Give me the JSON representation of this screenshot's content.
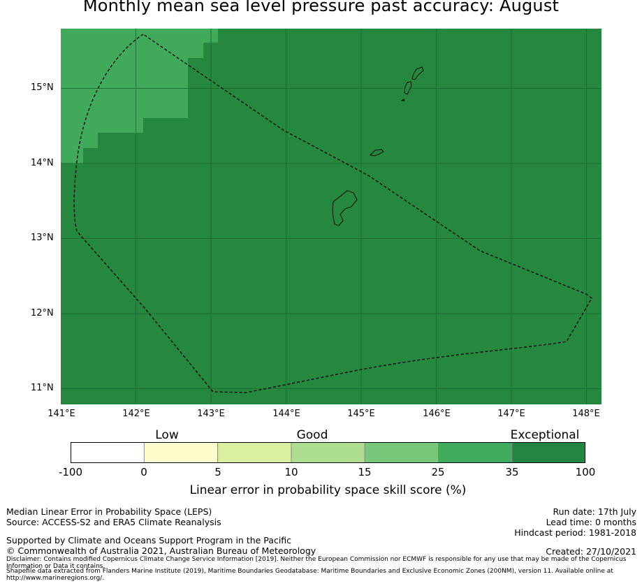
{
  "title": "Monthly mean sea level pressure past accuracy: August",
  "map": {
    "lon_range": [
      141,
      148.2
    ],
    "lat_range": [
      10.8,
      15.8
    ],
    "lat_ticks": [
      "15°N",
      "14°N",
      "13°N",
      "12°N",
      "11°N"
    ],
    "lon_ticks": [
      "141°E",
      "142°E",
      "143°E",
      "144°E",
      "145°E",
      "146°E",
      "147°E",
      "148°E"
    ],
    "region_colors": {
      "exceptional": "#26873f",
      "very_good": "#41a95a"
    },
    "outline": "EEZ boundary (dashed)",
    "islands": [
      "Guam",
      "Rota",
      "Tinian",
      "Saipan"
    ]
  },
  "colorbar": {
    "categories": [
      "Low",
      "Good",
      "Exceptional"
    ],
    "ticks": [
      "-100",
      "0",
      "5",
      "10",
      "15",
      "25",
      "35",
      "100"
    ],
    "colors": [
      "#ffffff",
      "#ffffcc",
      "#d9f0a3",
      "#addd8e",
      "#78c679",
      "#41ab5d",
      "#238443"
    ],
    "label": "Linear error in probability space skill score (%)"
  },
  "footer": {
    "line1": "Median Linear Error in Probability Space (LEPS)",
    "line2": "Source: ACCESS-S2 and ERA5 Climate Reanalysis",
    "line3": "Supported by Climate and Oceans Support Program in the Pacific",
    "line4": "© Commonwealth of Australia 2021, Australian Bureau of Meteorology",
    "run_date": "Run date: 17th July",
    "lead_time": "Lead time: 0 months",
    "hindcast": "Hindcast period: 1981-2018",
    "created": "Created: 27/10/2021",
    "disclaimer": "Disclaimer: Contains modified Copernicus Climate Change Service Information [2019]. Neither the European Commission nor ECMWF is responsible for any use that may be made of the Copernicus Information or Data it contains.",
    "shapefile": "Shapefile data extracted from Flanders Marine Institute (2019), Maritime Boundaries Geodatabase: Maritime Boundaries and Exclusive Economic Zones (200NM), version 11. Available online at http://www.marineregions.org/."
  }
}
